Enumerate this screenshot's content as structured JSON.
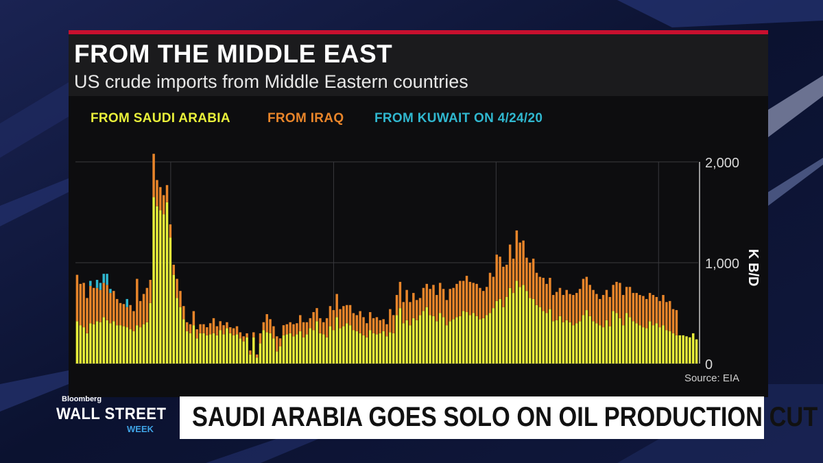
{
  "header": {
    "title": "FROM THE MIDDLE EAST",
    "subtitle": "US crude imports from Middle Eastern countries"
  },
  "legend": [
    {
      "label": "FROM SAUDI ARABIA",
      "color": "#e9f03a"
    },
    {
      "label": "FROM IRAQ",
      "color": "#e8852a"
    },
    {
      "label": "FROM KUWAIT ON 4/24/20",
      "color": "#30b7cf"
    }
  ],
  "source": "Source: EIA",
  "lower_third": {
    "brand": "Bloomberg",
    "show": "WALL STREET",
    "show_sub": "WEEK",
    "headline": "SAUDI ARABIA GOES SOLO ON OIL PRODUCTION CUT"
  },
  "colors": {
    "accent_red": "#c8102e",
    "saudi": "#e9f03a",
    "iraq": "#e8852a",
    "kuwait": "#30b7cf"
  },
  "chart_data": {
    "type": "bar",
    "stacked": true,
    "ylabel": "K B/D",
    "ylim": [
      0,
      2000
    ],
    "yticks": [
      0,
      1000,
      2000
    ],
    "ytick_labels": [
      "0",
      "1,000",
      "2,000"
    ],
    "xticks": [
      "2020",
      "2021",
      "2022",
      "2023"
    ],
    "x_start": "2019-06-01",
    "x_end": "2023-03-31",
    "frequency": "weekly",
    "grid": true,
    "series": [
      {
        "name": "FROM SAUDI ARABIA",
        "values": [
          420,
          380,
          360,
          300,
          400,
          390,
          420,
          410,
          460,
          430,
          400,
          420,
          380,
          380,
          370,
          360,
          340,
          320,
          380,
          360,
          390,
          410,
          600,
          1650,
          1560,
          1520,
          1480,
          1600,
          1250,
          880,
          650,
          560,
          440,
          320,
          300,
          380,
          250,
          300,
          300,
          280,
          290,
          300,
          280,
          330,
          290,
          350,
          300,
          280,
          290,
          250,
          220,
          260,
          90,
          260,
          60,
          200,
          330,
          310,
          300,
          250,
          120,
          170,
          280,
          290,
          300,
          270,
          290,
          320,
          260,
          290,
          350,
          330,
          420,
          300,
          290,
          260,
          370,
          330,
          460,
          350,
          370,
          400,
          380,
          330,
          320,
          300,
          280,
          260,
          330,
          300,
          290,
          300,
          320,
          270,
          310,
          300,
          480,
          550,
          400,
          430,
          380,
          450,
          430,
          480,
          520,
          560,
          480,
          470,
          420,
          500,
          460,
          380,
          420,
          440,
          460,
          470,
          520,
          510,
          480,
          500,
          470,
          440,
          450,
          480,
          500,
          550,
          620,
          640,
          560,
          660,
          750,
          700,
          820,
          760,
          780,
          720,
          650,
          640,
          580,
          560,
          520,
          500,
          540,
          420,
          430,
          470,
          410,
          430,
          410,
          380,
          400,
          420,
          480,
          530,
          470,
          420,
          400,
          380,
          360,
          430,
          370,
          520,
          500,
          450,
          380,
          500,
          460,
          420,
          400,
          380,
          360,
          350,
          420,
          380,
          400,
          360,
          380,
          330,
          320,
          300,
          280,
          280,
          280,
          270,
          260,
          300,
          240
        ],
        "color": "#e9f03a"
      },
      {
        "name": "FROM IRAQ",
        "values": [
          460,
          410,
          440,
          350,
          370,
          360,
          330,
          320,
          340,
          350,
          300,
          300,
          260,
          220,
          220,
          200,
          240,
          200,
          460,
          260,
          300,
          340,
          230,
          430,
          260,
          230,
          190,
          170,
          130,
          100,
          190,
          160,
          130,
          90,
          90,
          140,
          90,
          90,
          90,
          80,
          110,
          150,
          90,
          90,
          90,
          60,
          60,
          70,
          80,
          60,
          50,
          40,
          40,
          50,
          30,
          100,
          80,
          180,
          140,
          120,
          150,
          80,
          100,
          100,
          110,
          120,
          110,
          160,
          150,
          120,
          100,
          180,
          130,
          150,
          120,
          190,
          200,
          200,
          230,
          190,
          200,
          180,
          200,
          170,
          160,
          220,
          180,
          140,
          180,
          150,
          170,
          130,
          120,
          120,
          230,
          180,
          200,
          260,
          210,
          300,
          230,
          250,
          200,
          170,
          230,
          230,
          260,
          310,
          260,
          300,
          280,
          250,
          320,
          310,
          330,
          350,
          300,
          360,
          330,
          300,
          320,
          310,
          270,
          280,
          400,
          310,
          460,
          420,
          400,
          320,
          430,
          340,
          500,
          440,
          440,
          330,
          350,
          400,
          320,
          300,
          330,
          290,
          310,
          260,
          280,
          280,
          270,
          300,
          280,
          300,
          300,
          320,
          360,
          330,
          310,
          310,
          290,
          260,
          320,
          300,
          290,
          260,
          310,
          350,
          300,
          260,
          300,
          280,
          300,
          300,
          310,
          290,
          280,
          300,
          260,
          260,
          300,
          280,
          300,
          240,
          250
        ],
        "color": "#e8852a"
      },
      {
        "name": "FROM KUWAIT ON 4/24/20",
        "values": [
          0,
          0,
          0,
          0,
          50,
          0,
          80,
          70,
          90,
          110,
          40,
          0,
          0,
          0,
          0,
          80,
          0,
          0,
          0,
          0,
          0,
          0,
          0,
          0,
          0,
          0,
          0,
          0,
          0,
          0,
          0,
          0,
          0,
          0,
          0,
          0,
          0,
          0,
          0,
          0,
          0,
          0,
          0,
          0,
          0,
          0,
          0,
          0,
          0,
          0,
          0,
          0,
          0,
          0,
          0,
          0,
          0,
          0,
          0,
          0,
          0,
          0,
          0,
          0,
          0,
          0,
          0,
          0,
          0,
          0,
          0,
          0,
          0,
          0,
          0,
          0,
          0,
          0,
          0,
          0,
          0,
          0,
          0,
          0,
          0,
          0,
          0,
          0,
          0,
          0,
          0,
          0,
          0,
          0,
          0,
          0,
          0,
          0,
          0,
          0,
          0,
          0,
          0,
          0,
          0,
          0,
          0,
          0,
          0,
          0,
          0,
          0,
          0,
          0,
          0,
          0,
          0,
          0,
          0,
          0,
          0,
          0,
          0,
          0,
          0,
          0,
          0,
          0,
          0,
          0,
          0,
          0,
          0,
          0,
          0,
          0,
          0,
          0,
          0,
          0,
          0,
          0,
          0,
          0,
          0,
          0,
          0,
          0,
          0,
          0,
          0,
          0,
          0,
          0,
          0,
          0,
          0,
          0,
          0,
          0,
          0,
          0,
          0,
          0,
          0,
          0,
          0,
          0,
          0,
          0,
          0,
          0,
          0,
          0,
          0,
          0,
          0,
          0,
          0,
          0,
          0
        ],
        "color": "#30b7cf"
      }
    ]
  }
}
